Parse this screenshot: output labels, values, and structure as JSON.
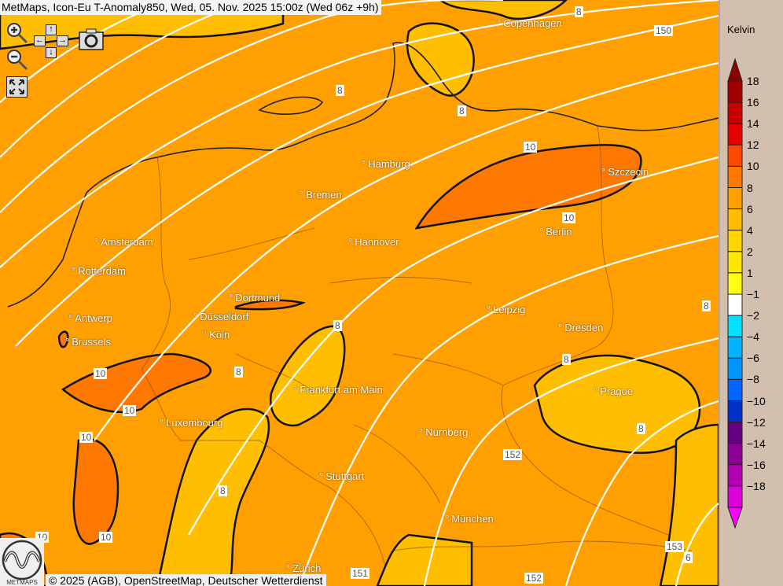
{
  "title": "MetMaps, Icon-Eu T-Anomaly850, Wed, 05. Nov. 2025 15:00z (Wed 06z +9h)",
  "controls": {
    "zoom_in": "zoom-in-icon",
    "zoom_out": "zoom-out-icon",
    "pan_up": "↑",
    "pan_down": "↓",
    "pan_left": "←",
    "pan_right": "→",
    "screenshot": "camera-icon",
    "fullscreen": "fullscreen-icon"
  },
  "cities": [
    {
      "name": "Copenhagen"
    },
    {
      "name": "Hamburg"
    },
    {
      "name": "Szczecin"
    },
    {
      "name": "Bremen"
    },
    {
      "name": "Berlin"
    },
    {
      "name": "Amsterdam"
    },
    {
      "name": "Hannover"
    },
    {
      "name": "Rotterdam"
    },
    {
      "name": "Dortmund"
    },
    {
      "name": "Leipzig"
    },
    {
      "name": "Antwerp"
    },
    {
      "name": "Düsseldorf"
    },
    {
      "name": "Dresden"
    },
    {
      "name": "Brussels"
    },
    {
      "name": "Köln"
    },
    {
      "name": "Frankfurt am Main"
    },
    {
      "name": "Prague"
    },
    {
      "name": "Luxembourg"
    },
    {
      "name": "Nürnberg"
    },
    {
      "name": "Stuttgart"
    },
    {
      "name": "München"
    },
    {
      "name": "Zürich"
    }
  ],
  "contour_labels": [
    "8",
    "150",
    "8",
    "8",
    "10",
    "10",
    "10",
    "10",
    "10",
    "8",
    "8",
    "8",
    "152",
    "8",
    "8",
    "10",
    "10",
    "153",
    "151",
    "152",
    "8",
    "6"
  ],
  "copyright": "© 2025 (AGB), OpenStreetMap, Deutscher Wetterdienst",
  "logo_text": "METMAPS",
  "legend": {
    "unit": "Kelvin",
    "labels": [
      "18",
      "16",
      "14",
      "12",
      "10",
      "8",
      "6",
      "4",
      "2",
      "1",
      "−1",
      "−2",
      "−4",
      "−6",
      "−8",
      "−10",
      "−12",
      "−14",
      "−16",
      "−18"
    ],
    "colors": [
      "#a00000",
      "#c80000",
      "#e60000",
      "#ff4800",
      "#ff7800",
      "#ffa000",
      "#ffbe00",
      "#ffd600",
      "#ffe800",
      "#ffff14",
      "#ffffff",
      "#00e0ff",
      "#00b4ff",
      "#0096ff",
      "#0064ff",
      "#0032c8",
      "#640080",
      "#8c0096",
      "#b400b4",
      "#dc00dc"
    ],
    "top_arrow_color": "#8c0000",
    "bottom_arrow_color": "#ff00ff"
  },
  "map_colors": {
    "anom_6_8": "#ffbe00",
    "anom_8_10": "#ffa000",
    "anom_10_12": "#ff7800"
  }
}
